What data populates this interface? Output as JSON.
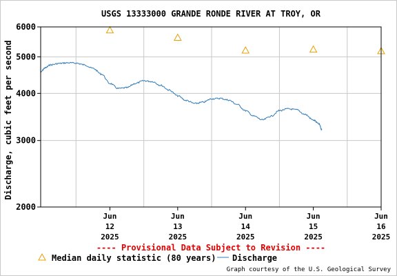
{
  "chart_data": {
    "type": "line",
    "title": "USGS 13333000 GRANDE RONDE RIVER AT TROY, OR",
    "ylabel": "Discharge, cubic feet per second",
    "y_scale": "log",
    "ylim": [
      2000,
      6000
    ],
    "y_ticks": [
      {
        "value": 2000,
        "label": "2000"
      },
      {
        "value": 3000,
        "label": "3000"
      },
      {
        "value": 4000,
        "label": "4000"
      },
      {
        "value": 5000,
        "label": "5000"
      },
      {
        "value": 6000,
        "label": "6000"
      }
    ],
    "xlim": [
      "2025-06-11T11:30",
      "2025-06-16T12:00"
    ],
    "x_ticks": [
      {
        "x": "2025-06-12T00:00",
        "label": [
          "Jun",
          "12",
          "2025"
        ]
      },
      {
        "x": "2025-06-13T00:00",
        "label": [
          "Jun",
          "13",
          "2025"
        ]
      },
      {
        "x": "2025-06-14T00:00",
        "label": [
          "Jun",
          "14",
          "2025"
        ]
      },
      {
        "x": "2025-06-15T00:00",
        "label": [
          "Jun",
          "15",
          "2025"
        ]
      },
      {
        "x": "2025-06-16T00:00",
        "label": [
          "Jun",
          "16",
          "2025"
        ]
      }
    ],
    "grid": true,
    "series": [
      {
        "name": "Discharge",
        "color": "#2f7ab8",
        "points": [
          [
            "2025-06-11T11:30",
            4550
          ],
          [
            "2025-06-11T13:00",
            4670
          ],
          [
            "2025-06-11T15:00",
            4760
          ],
          [
            "2025-06-11T18:00",
            4800
          ],
          [
            "2025-06-11T21:00",
            4820
          ],
          [
            "2025-06-12T00:00",
            4810
          ],
          [
            "2025-06-12T03:00",
            4760
          ],
          [
            "2025-06-12T06:00",
            4660
          ],
          [
            "2025-06-12T09:00",
            4500
          ],
          [
            "2025-06-12T12:00",
            4250
          ],
          [
            "2025-06-12T15:00",
            4120
          ],
          [
            "2025-06-12T18:00",
            4140
          ],
          [
            "2025-06-12T21:00",
            4250
          ],
          [
            "2025-06-13T00:00",
            4320
          ],
          [
            "2025-06-13T03:00",
            4300
          ],
          [
            "2025-06-13T06:00",
            4200
          ],
          [
            "2025-06-13T09:00",
            4080
          ],
          [
            "2025-06-13T12:00",
            3940
          ],
          [
            "2025-06-13T15:00",
            3830
          ],
          [
            "2025-06-13T18:00",
            3760
          ],
          [
            "2025-06-13T21:00",
            3790
          ],
          [
            "2025-06-14T00:00",
            3870
          ],
          [
            "2025-06-14T03:00",
            3880
          ],
          [
            "2025-06-14T06:00",
            3840
          ],
          [
            "2025-06-14T09:00",
            3740
          ],
          [
            "2025-06-14T12:00",
            3600
          ],
          [
            "2025-06-14T15:00",
            3480
          ],
          [
            "2025-06-14T18:00",
            3400
          ],
          [
            "2025-06-14T21:00",
            3480
          ],
          [
            "2025-06-15T00:00",
            3600
          ],
          [
            "2025-06-15T03:00",
            3640
          ],
          [
            "2025-06-15T06:00",
            3620
          ],
          [
            "2025-06-15T09:00",
            3520
          ],
          [
            "2025-06-15T12:00",
            3400
          ],
          [
            "2025-06-15T14:00",
            3320
          ],
          [
            "2025-06-15T15:00",
            3200
          ]
        ]
      }
    ],
    "median_statistic": {
      "name": "Median daily statistic (80 years)",
      "color": "#e8a000",
      "points": [
        [
          "2025-06-12T00:00",
          5880
        ],
        [
          "2025-06-13T00:00",
          5620
        ],
        [
          "2025-06-14T00:00",
          5200
        ],
        [
          "2025-06-15T00:00",
          5230
        ],
        [
          "2025-06-16T00:00",
          5180
        ]
      ]
    }
  },
  "provisional_notice": "---- Provisional Data Subject to Revision ----",
  "credit": "Graph courtesy of the U.S. Geological Survey"
}
